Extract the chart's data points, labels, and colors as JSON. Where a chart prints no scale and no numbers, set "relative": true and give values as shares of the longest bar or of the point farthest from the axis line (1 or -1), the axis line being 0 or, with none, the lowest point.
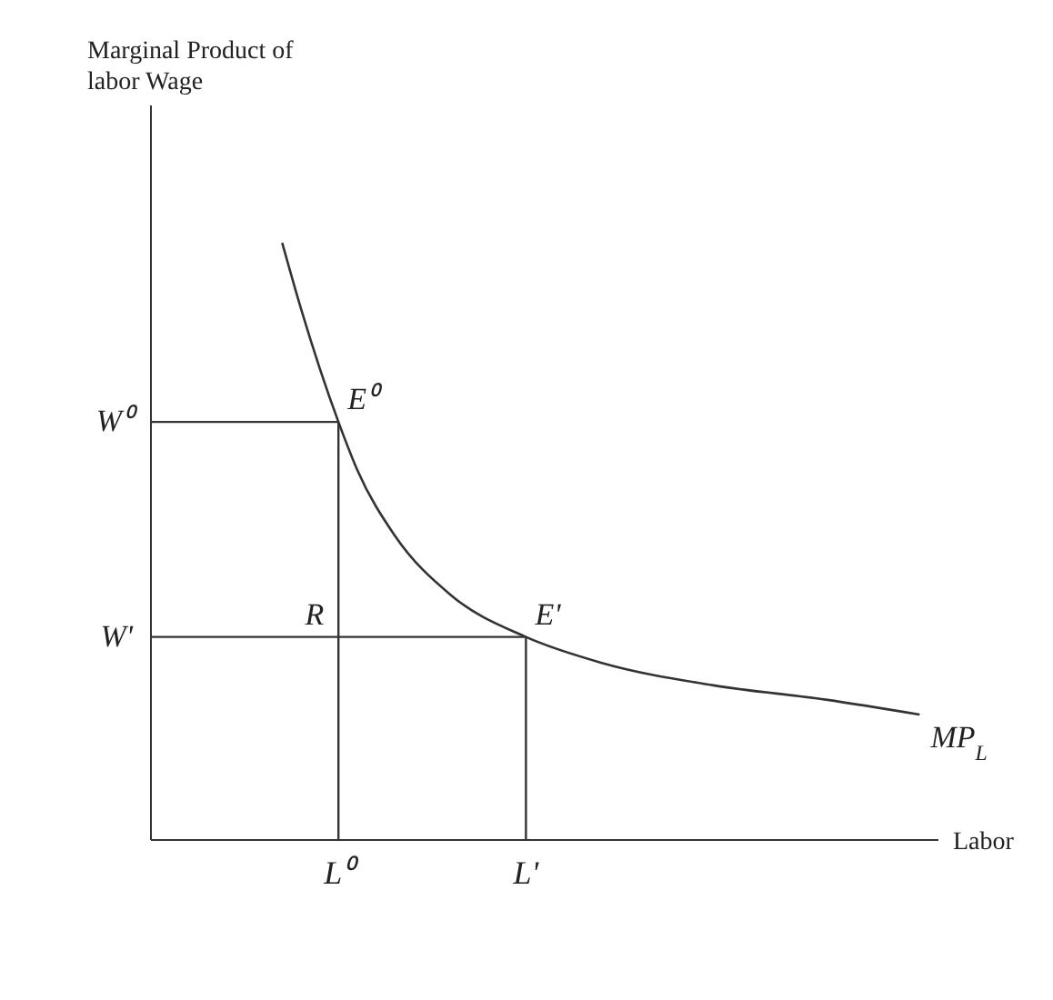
{
  "chart_data": {
    "type": "line",
    "relative": true,
    "xlabel": "Labor",
    "categories": [
      null,
      null,
      null,
      null,
      null,
      null,
      null,
      null,
      null,
      null,
      "L⁰",
      null,
      null,
      null,
      null,
      null,
      null,
      null,
      null,
      null,
      "L'",
      null,
      null,
      null,
      null,
      null,
      null,
      null,
      null,
      null,
      null,
      null,
      null,
      null,
      null,
      null,
      null,
      null,
      null,
      null,
      null,
      null,
      null
    ],
    "series": [
      {
        "name": "MP$_{L}$",
        "color": "#333333",
        "values": [
          null,
          null,
          null,
          null,
          null,
          null,
          null,
          1,
          0.89,
          null,
          0.7,
          0.62,
          null,
          0.51,
          null,
          null,
          0.41,
          null,
          null,
          null,
          0.34,
          null,
          null,
          null,
          0.297,
          null,
          null,
          null,
          null,
          null,
          0.259,
          null,
          null,
          null,
          null,
          null,
          0.235,
          null,
          null,
          null,
          null,
          0.21,
          null
        ]
      }
    ],
    "ref_lines": [
      {
        "axis": "y",
        "value": 0.7,
        "label": "W⁰",
        "color": "#333333"
      },
      {
        "axis": "y",
        "value": 0.34,
        "label": "W'",
        "color": "#333333"
      },
      {
        "axis": "x",
        "value": "L⁰",
        "color": "#333333"
      },
      {
        "axis": "x",
        "value": "L'",
        "color": "#333333"
      }
    ],
    "annotations": [
      "Marginal Product of labor Wage",
      {
        "text": "E⁰",
        "x": "L⁰",
        "y": 0.7
      },
      {
        "text": "E'",
        "x": "L'",
        "y": 0.34
      },
      {
        "text": "R",
        "x": "L⁰",
        "y": 0.34
      }
    ]
  }
}
